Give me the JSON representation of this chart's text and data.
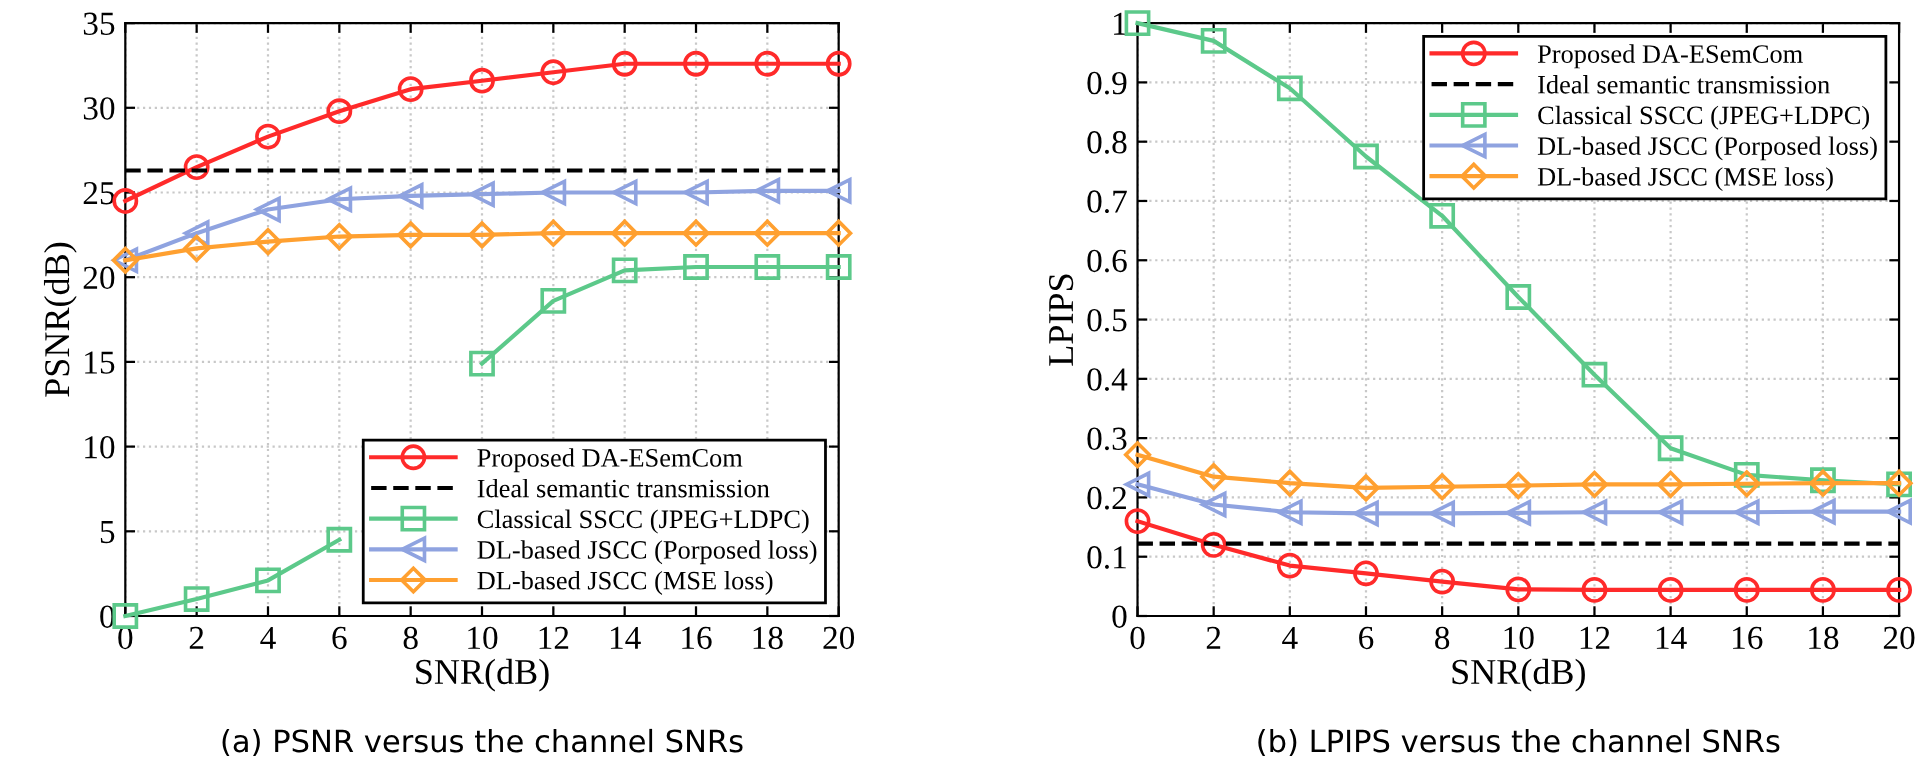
{
  "chart_data": [
    {
      "type": "line",
      "xlabel": "SNR(dB)",
      "ylabel": "PSNR(dB)",
      "annotations": [
        "(a) PSNR versus the channel SNRs"
      ],
      "x": [
        0,
        2,
        4,
        6,
        8,
        10,
        12,
        14,
        16,
        18,
        20
      ],
      "xlim": [
        0,
        20
      ],
      "xticks": [
        0,
        2,
        4,
        6,
        8,
        10,
        12,
        14,
        16,
        18,
        20
      ],
      "ylim": [
        0,
        35
      ],
      "yticks": [
        0,
        5,
        10,
        15,
        20,
        25,
        30,
        35
      ],
      "grid": true,
      "legend": "bottom right",
      "series": [
        {
          "name": "Proposed DA-ESemCom",
          "color": "#ff2a2a",
          "marker": "circle",
          "line_style": "solid",
          "values": [
            24.5,
            26.5,
            28.3,
            29.8,
            31.1,
            31.6,
            32.1,
            32.6,
            32.6,
            32.6,
            32.6
          ]
        },
        {
          "name": "Ideal semantic transmission",
          "color": "#000000",
          "marker": "none",
          "line_style": "dashed",
          "values": [
            26.3,
            26.3,
            26.3,
            26.3,
            26.3,
            26.3,
            26.3,
            26.3,
            26.3,
            26.3,
            26.3
          ]
        },
        {
          "name": "Classical SSCC (JPEG+LDPC)",
          "color": "#5cc98a",
          "marker": "square",
          "line_style": "solid",
          "values": [
            0,
            1.0,
            2.1,
            4.5,
            null,
            14.9,
            18.6,
            20.4,
            20.6,
            20.6,
            20.6
          ]
        },
        {
          "name": "DL-based JSCC (Porposed loss)",
          "color": "#8fa3e0",
          "marker": "triangle",
          "line_style": "solid",
          "values": [
            21.0,
            22.6,
            24.0,
            24.6,
            24.8,
            24.9,
            25.0,
            25.0,
            25.0,
            25.1,
            25.1
          ]
        },
        {
          "name": "DL-based JSCC (MSE loss)",
          "color": "#ffa030",
          "marker": "diamond",
          "line_style": "solid",
          "values": [
            21.0,
            21.7,
            22.1,
            22.4,
            22.5,
            22.5,
            22.6,
            22.6,
            22.6,
            22.6,
            22.6
          ]
        }
      ]
    },
    {
      "type": "line",
      "xlabel": "SNR(dB)",
      "ylabel": "LPIPS",
      "annotations": [
        "(b) LPIPS versus the channel SNRs"
      ],
      "x": [
        0,
        2,
        4,
        6,
        8,
        10,
        12,
        14,
        16,
        18,
        20
      ],
      "xlim": [
        0,
        20
      ],
      "xticks": [
        0,
        2,
        4,
        6,
        8,
        10,
        12,
        14,
        16,
        18,
        20
      ],
      "ylim": [
        0,
        1
      ],
      "yticks": [
        0,
        0.1,
        0.2,
        0.3,
        0.4,
        0.5,
        0.6,
        0.7,
        0.8,
        0.9,
        1
      ],
      "grid": true,
      "legend": "top right",
      "series": [
        {
          "name": "Proposed DA-ESemCom",
          "color": "#ff2a2a",
          "marker": "circle",
          "line_style": "solid",
          "values": [
            0.16,
            0.12,
            0.085,
            0.072,
            0.058,
            0.045,
            0.044,
            0.044,
            0.044,
            0.044,
            0.044
          ]
        },
        {
          "name": "Ideal semantic transmission",
          "color": "#000000",
          "marker": "none",
          "line_style": "dashed",
          "values": [
            0.122,
            0.122,
            0.122,
            0.122,
            0.122,
            0.122,
            0.122,
            0.122,
            0.122,
            0.122,
            0.122
          ]
        },
        {
          "name": "Classical SSCC (JPEG+LDPC)",
          "color": "#5cc98a",
          "marker": "square",
          "line_style": "solid",
          "values": [
            1.0,
            0.97,
            0.89,
            0.775,
            0.675,
            0.538,
            0.407,
            0.283,
            0.238,
            0.229,
            0.222
          ]
        },
        {
          "name": "DL-based JSCC (Porposed loss)",
          "color": "#8fa3e0",
          "marker": "triangle",
          "line_style": "solid",
          "values": [
            0.222,
            0.188,
            0.175,
            0.173,
            0.173,
            0.174,
            0.175,
            0.175,
            0.175,
            0.176,
            0.176
          ]
        },
        {
          "name": "DL-based JSCC (MSE loss)",
          "color": "#ffa030",
          "marker": "diamond",
          "line_style": "solid",
          "values": [
            0.272,
            0.235,
            0.224,
            0.216,
            0.218,
            0.22,
            0.222,
            0.222,
            0.223,
            0.224,
            0.224
          ]
        }
      ]
    }
  ]
}
